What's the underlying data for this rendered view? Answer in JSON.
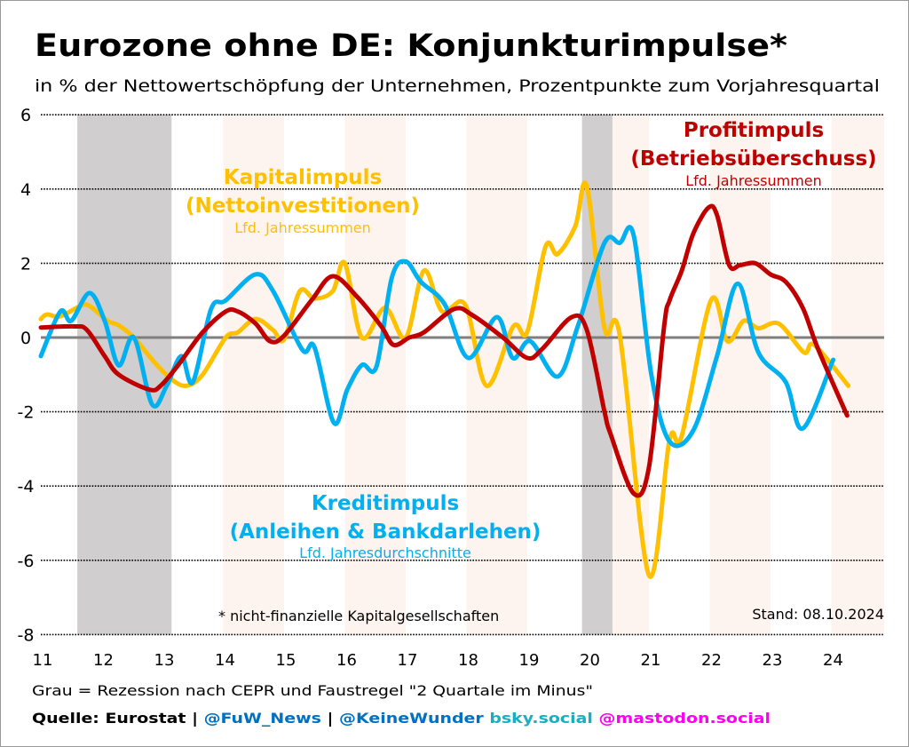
{
  "chart_data": {
    "type": "line",
    "title": "Eurozone ohne DE: Konjunkturimpulse*",
    "subtitle": "in % der Nettowertschöpfung der Unternehmen, Prozentpunkte zum Vorjahresquartal",
    "xlabel": "",
    "ylabel": "",
    "xlim": [
      2011,
      2024.9
    ],
    "ylim": [
      -8,
      6
    ],
    "yticks": [
      6,
      4,
      2,
      0,
      -2,
      -4,
      -6,
      -8
    ],
    "xticks": [
      {
        "year": 2011,
        "label": "11"
      },
      {
        "year": 2012,
        "label": "12"
      },
      {
        "year": 2013,
        "label": "13"
      },
      {
        "year": 2014,
        "label": "14"
      },
      {
        "year": 2015,
        "label": "15"
      },
      {
        "year": 2016,
        "label": "16"
      },
      {
        "year": 2017,
        "label": "17"
      },
      {
        "year": 2018,
        "label": "18"
      },
      {
        "year": 2019,
        "label": "19"
      },
      {
        "year": 2020,
        "label": "20"
      },
      {
        "year": 2021,
        "label": "21"
      },
      {
        "year": 2022,
        "label": "22"
      },
      {
        "year": 2023,
        "label": "23"
      },
      {
        "year": 2024,
        "label": "24"
      }
    ],
    "grid": "horizontal-dotted",
    "recessions": [
      [
        2011.6,
        2013.15
      ],
      [
        2019.9,
        2020.4
      ]
    ],
    "shaded_years": [
      2014,
      2016,
      2018,
      2020,
      2022,
      2024
    ],
    "series": [
      {
        "name": "Kapitalimpuls (Nettoinvestitionen)",
        "note": "Lfd. Jahressummen",
        "color": "#FFC000",
        "points": [
          [
            2011.0,
            0.5
          ],
          [
            2011.1,
            0.62
          ],
          [
            2011.32,
            0.57
          ],
          [
            2011.66,
            0.86
          ],
          [
            2011.8,
            0.85
          ],
          [
            2012.1,
            0.45
          ],
          [
            2012.28,
            0.33
          ],
          [
            2012.53,
            0.0
          ],
          [
            2012.87,
            -0.67
          ],
          [
            2013.17,
            -1.15
          ],
          [
            2013.4,
            -1.3
          ],
          [
            2013.66,
            -1.0
          ],
          [
            2014.04,
            0.0
          ],
          [
            2014.24,
            0.14
          ],
          [
            2014.53,
            0.5
          ],
          [
            2014.82,
            0.2
          ],
          [
            2015.0,
            -0.05
          ],
          [
            2015.26,
            1.25
          ],
          [
            2015.5,
            1.05
          ],
          [
            2015.8,
            1.25
          ],
          [
            2016.0,
            2.0
          ],
          [
            2016.28,
            0.0
          ],
          [
            2016.66,
            0.8
          ],
          [
            2017.0,
            0.0
          ],
          [
            2017.3,
            1.8
          ],
          [
            2017.6,
            0.7
          ],
          [
            2017.98,
            0.88
          ],
          [
            2018.33,
            -1.3
          ],
          [
            2018.77,
            0.3
          ],
          [
            2019.0,
            0.15
          ],
          [
            2019.3,
            2.45
          ],
          [
            2019.5,
            2.25
          ],
          [
            2019.79,
            3.0
          ],
          [
            2019.98,
            4.07
          ],
          [
            2020.27,
            0.25
          ],
          [
            2020.52,
            0.07
          ],
          [
            2021.0,
            -6.4
          ],
          [
            2021.34,
            -2.75
          ],
          [
            2021.54,
            -2.65
          ],
          [
            2022.02,
            1.0
          ],
          [
            2022.29,
            -0.1
          ],
          [
            2022.56,
            0.45
          ],
          [
            2022.8,
            0.25
          ],
          [
            2023.14,
            0.37
          ],
          [
            2023.55,
            -0.4
          ],
          [
            2023.72,
            -0.2
          ],
          [
            2024.28,
            -1.3
          ]
        ]
      },
      {
        "name": "Profitimpuls (Betriebsüberschuss)",
        "note": "Lfd. Jahressummen",
        "color": "#C00000",
        "points": [
          [
            2011.0,
            0.27
          ],
          [
            2011.56,
            0.3
          ],
          [
            2011.76,
            0.2
          ],
          [
            2012.05,
            -0.5
          ],
          [
            2012.28,
            -1.0
          ],
          [
            2012.78,
            -1.4
          ],
          [
            2012.97,
            -1.3
          ],
          [
            2013.26,
            -0.74
          ],
          [
            2013.66,
            0.14
          ],
          [
            2014.04,
            0.7
          ],
          [
            2014.24,
            0.7
          ],
          [
            2014.53,
            0.38
          ],
          [
            2014.77,
            -0.1
          ],
          [
            2015.0,
            0.05
          ],
          [
            2015.45,
            1.0
          ],
          [
            2015.8,
            1.65
          ],
          [
            2016.2,
            1.1
          ],
          [
            2016.6,
            0.3
          ],
          [
            2016.8,
            -0.2
          ],
          [
            2017.06,
            0.0
          ],
          [
            2017.3,
            0.14
          ],
          [
            2017.8,
            0.77
          ],
          [
            2018.1,
            0.6
          ],
          [
            2018.6,
            0.0
          ],
          [
            2019.0,
            -0.55
          ],
          [
            2019.25,
            -0.3
          ],
          [
            2019.73,
            0.55
          ],
          [
            2019.98,
            0.2
          ],
          [
            2020.27,
            -2.0
          ],
          [
            2020.37,
            -2.6
          ],
          [
            2020.75,
            -4.2
          ],
          [
            2021.0,
            -3.5
          ],
          [
            2021.25,
            0.3
          ],
          [
            2021.34,
            1.0
          ],
          [
            2021.54,
            1.8
          ],
          [
            2021.73,
            2.8
          ],
          [
            2021.98,
            3.5
          ],
          [
            2022.12,
            3.3
          ],
          [
            2022.32,
            1.95
          ],
          [
            2022.5,
            1.95
          ],
          [
            2022.75,
            2.0
          ],
          [
            2023.0,
            1.7
          ],
          [
            2023.25,
            1.5
          ],
          [
            2023.53,
            0.8
          ],
          [
            2023.78,
            -0.3
          ],
          [
            2024.26,
            -2.1
          ]
        ]
      },
      {
        "name": "Kreditimpuls (Anleihen & Bankdarlehen)",
        "note": "Lfd. Jahresdurchschnitte",
        "color": "#00B0F0",
        "points": [
          [
            2011.0,
            -0.5
          ],
          [
            2011.32,
            0.7
          ],
          [
            2011.5,
            0.45
          ],
          [
            2011.8,
            1.2
          ],
          [
            2012.05,
            0.45
          ],
          [
            2012.28,
            -0.75
          ],
          [
            2012.53,
            0.0
          ],
          [
            2012.83,
            -1.8
          ],
          [
            2013.07,
            -1.3
          ],
          [
            2013.31,
            -0.5
          ],
          [
            2013.5,
            -1.2
          ],
          [
            2013.8,
            0.77
          ],
          [
            2014.04,
            1.0
          ],
          [
            2014.53,
            1.7
          ],
          [
            2014.82,
            1.25
          ],
          [
            2015.3,
            -0.33
          ],
          [
            2015.5,
            -0.26
          ],
          [
            2015.82,
            -2.3
          ],
          [
            2016.04,
            -1.4
          ],
          [
            2016.28,
            -0.74
          ],
          [
            2016.52,
            -0.78
          ],
          [
            2016.77,
            1.6
          ],
          [
            2017.0,
            2.05
          ],
          [
            2017.25,
            1.5
          ],
          [
            2017.64,
            0.9
          ],
          [
            2018.03,
            -0.55
          ],
          [
            2018.5,
            0.55
          ],
          [
            2018.76,
            -0.55
          ],
          [
            2019.05,
            -0.1
          ],
          [
            2019.5,
            -1.05
          ],
          [
            2019.83,
            0.3
          ],
          [
            2020.27,
            2.55
          ],
          [
            2020.52,
            2.55
          ],
          [
            2020.75,
            2.75
          ],
          [
            2021.04,
            -1.0
          ],
          [
            2021.34,
            -2.8
          ],
          [
            2021.73,
            -2.5
          ],
          [
            2022.12,
            -0.5
          ],
          [
            2022.46,
            1.45
          ],
          [
            2022.8,
            -0.4
          ],
          [
            2023.25,
            -1.2
          ],
          [
            2023.53,
            -2.45
          ],
          [
            2024.03,
            -0.6
          ]
        ]
      }
    ],
    "annotations": {
      "kapital_title": "Kapitalimpuls",
      "kapital_sub": "(Nettoinvestitionen)",
      "kapital_note": "Lfd. Jahressummen",
      "profit_title": "Profitimpuls",
      "profit_sub": "(Betriebsüberschuss)",
      "profit_note": "Lfd. Jahressummen",
      "kredit_title": "Kreditimpuls",
      "kredit_sub": "(Anleihen & Bankdarlehen)",
      "kredit_note": "Lfd. Jahresdurchschnitte",
      "footnote": "* nicht-finanzielle Kapitalgesellschaften",
      "stand": "Stand: 08.10.2024"
    }
  },
  "footer": {
    "recession_note": "Grau = Rezession nach CEPR und Faustregel \"2 Quartale im Minus\"",
    "source": "Quelle: Eurostat",
    "sep1": " | ",
    "fuw": "@FuW_News",
    "sep2": " | ",
    "keinewunder": "@KeineWunder",
    "bsky": " bsky.social",
    "mastodon": " @mastodon.social"
  },
  "colors": {
    "kapital": "#FFC000",
    "profit": "#C00000",
    "kredit": "#00B0F0",
    "link_blue": "#0070C0",
    "bsky": "#1AAFC0",
    "mastodon": "#FF00EE",
    "recession": "#D0CECE",
    "shade": "#FDF4EF"
  }
}
